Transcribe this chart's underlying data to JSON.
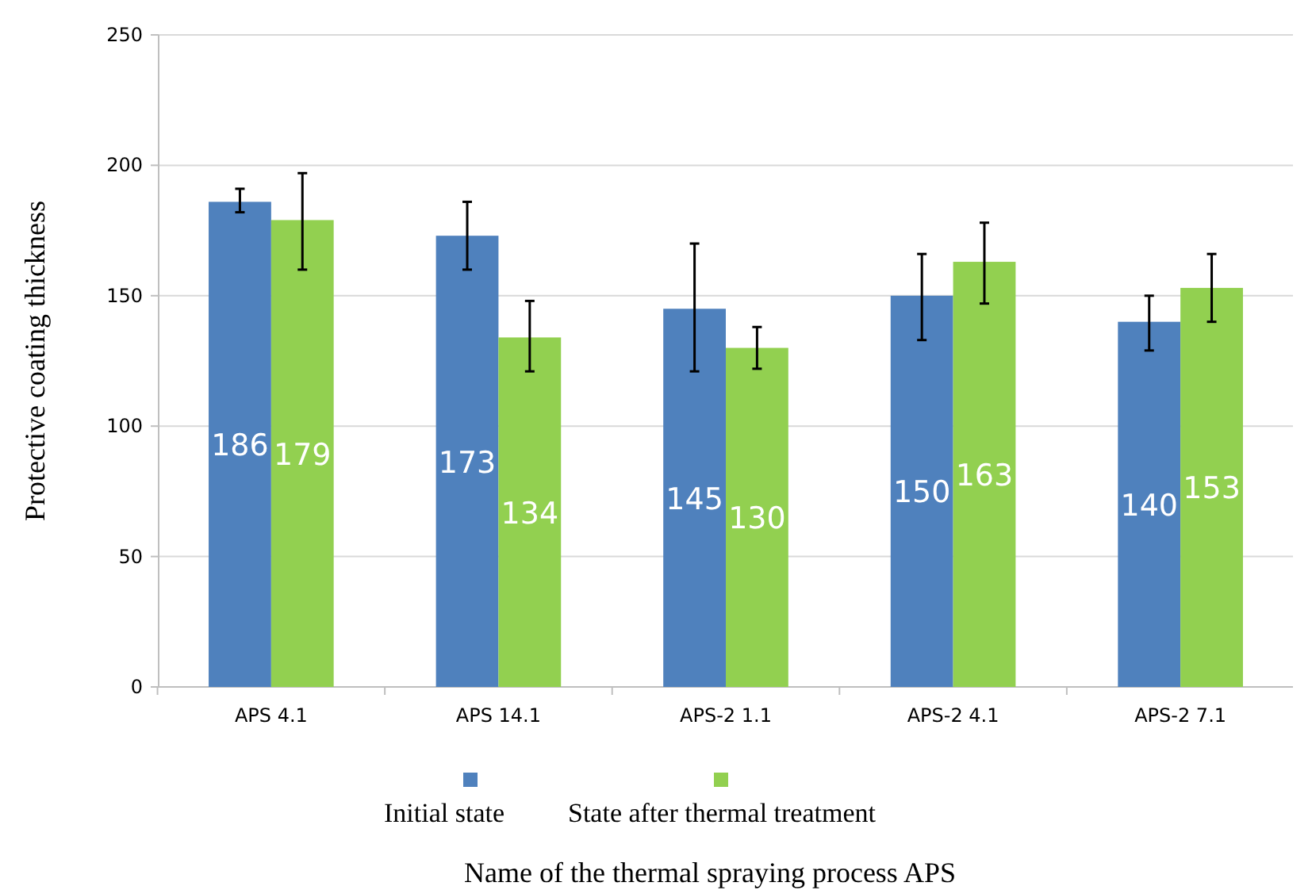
{
  "chart_data": {
    "type": "bar",
    "xlabel": "Name of the thermal spraying process APS",
    "ylabel": "Protective coating thickness",
    "categories": [
      "APS 4.1",
      "APS 14.1",
      "APS-2 1.1",
      "APS-2 4.1",
      "APS-2 7.1"
    ],
    "series": [
      {
        "name": "Initial state",
        "color": "#4f81bd",
        "values": [
          186,
          173,
          145,
          150,
          140
        ],
        "errors": [
          [
            182,
            191
          ],
          [
            160,
            186
          ],
          [
            121,
            170
          ],
          [
            133,
            166
          ],
          [
            129,
            150
          ]
        ]
      },
      {
        "name": "State after thermal treatment",
        "color": "#92d050",
        "values": [
          179,
          134,
          130,
          163,
          153
        ],
        "errors": [
          [
            160,
            197
          ],
          [
            121,
            148
          ],
          [
            122,
            138
          ],
          [
            147,
            178
          ],
          [
            140,
            166
          ]
        ]
      }
    ],
    "ylim": [
      0,
      250
    ],
    "yticks": [
      0,
      50,
      100,
      150,
      200,
      250
    ],
    "grid": "y",
    "legend": "bottom",
    "data_labels": true
  }
}
